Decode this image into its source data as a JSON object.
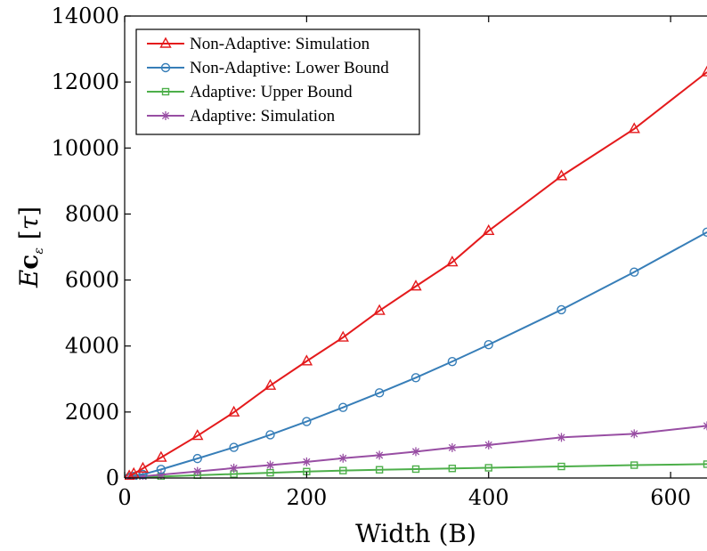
{
  "chart_data": {
    "type": "line",
    "xlabel": "Width (B)",
    "ylabel": "E_{c_ε}[τ]",
    "xlim": [
      0,
      640
    ],
    "ylim": [
      0,
      14000
    ],
    "xticks": [
      0,
      200,
      400,
      600
    ],
    "yticks": [
      0,
      2000,
      4000,
      6000,
      8000,
      10000,
      12000,
      14000
    ],
    "grid": false,
    "legend_position": "top-left",
    "series": [
      {
        "name": "Non-Adaptive: Simulation",
        "color": "#e41a1c",
        "marker": "triangle",
        "x": [
          5,
          10,
          20,
          40,
          80,
          120,
          160,
          200,
          240,
          280,
          320,
          360,
          400,
          480,
          560,
          640
        ],
        "y": [
          60,
          130,
          290,
          620,
          1280,
          1990,
          2800,
          3540,
          4260,
          5070,
          5810,
          6540,
          7490,
          9150,
          10580,
          12300
        ]
      },
      {
        "name": "Non-Adaptive: Lower Bound",
        "color": "#377eb8",
        "marker": "circle",
        "x": [
          5,
          10,
          20,
          40,
          80,
          120,
          160,
          200,
          240,
          280,
          320,
          360,
          400,
          480,
          560,
          640
        ],
        "y": [
          20,
          50,
          110,
          260,
          590,
          930,
          1310,
          1710,
          2140,
          2580,
          3040,
          3530,
          4040,
          5100,
          6240,
          7450
        ]
      },
      {
        "name": "Adaptive: Upper Bound",
        "color": "#4daf4a",
        "marker": "square",
        "x": [
          5,
          10,
          20,
          40,
          80,
          120,
          160,
          200,
          240,
          280,
          320,
          360,
          400,
          480,
          560,
          640
        ],
        "y": [
          10,
          15,
          25,
          45,
          85,
          120,
          160,
          195,
          225,
          250,
          270,
          290,
          310,
          350,
          390,
          420
        ]
      },
      {
        "name": "Adaptive: Simulation",
        "color": "#984ea3",
        "marker": "star",
        "x": [
          5,
          10,
          20,
          40,
          80,
          120,
          160,
          200,
          240,
          280,
          320,
          360,
          400,
          480,
          560,
          640
        ],
        "y": [
          15,
          25,
          50,
          100,
          200,
          300,
          390,
          490,
          600,
          690,
          800,
          920,
          1000,
          1230,
          1340,
          1580
        ]
      }
    ]
  }
}
